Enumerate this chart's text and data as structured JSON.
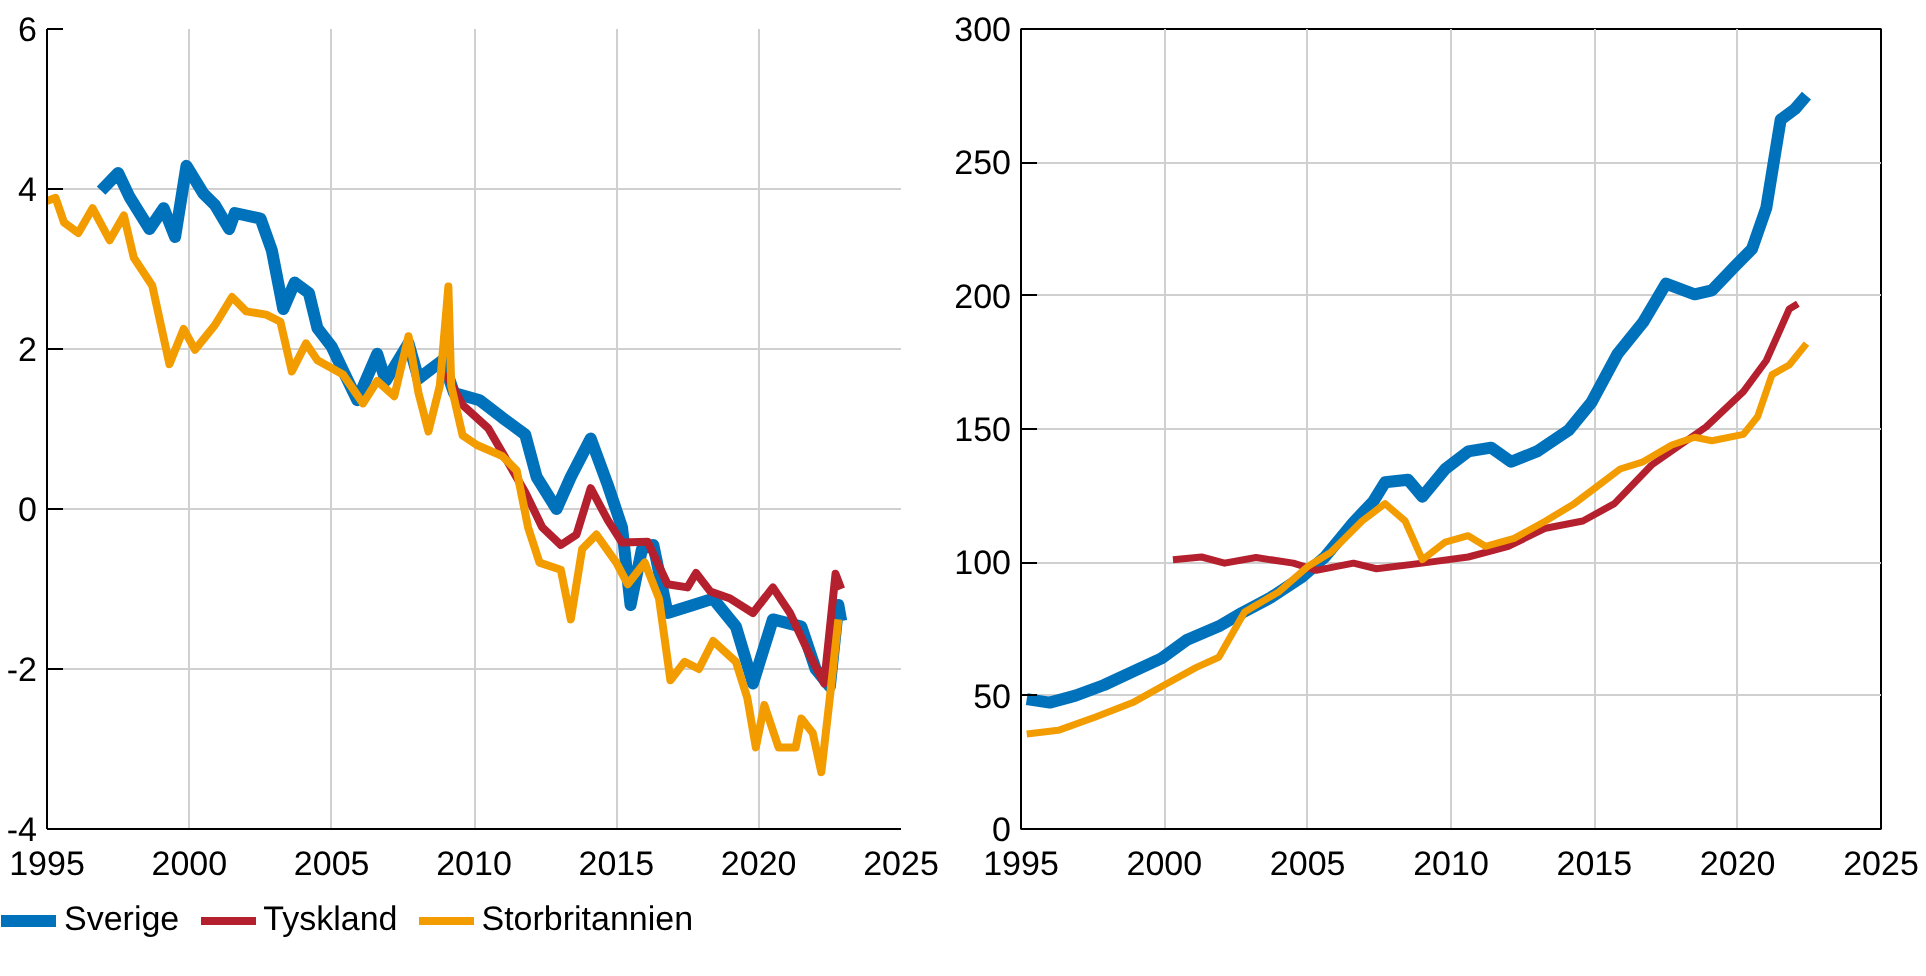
{
  "chart_data": [
    {
      "type": "line",
      "xlim": [
        1995,
        2025
      ],
      "xticks": [
        1995,
        2000,
        2005,
        2010,
        2015,
        2020,
        2025
      ],
      "ylim": [
        -4,
        6
      ],
      "yticks": [
        -4,
        -2,
        0,
        2,
        4,
        6
      ],
      "grid": true,
      "legend": "bottom",
      "series": [
        {
          "name": "Sverige",
          "color": "#0072bb",
          "x": [
            1996.9,
            1997.5,
            1997.9,
            1998.6,
            1999.1,
            1999.5,
            1999.9,
            2000.5,
            2000.9,
            2001.4,
            2001.6,
            2002.5,
            2002.9,
            2003.3,
            2003.7,
            2004.2,
            2004.5,
            2005.0,
            2005.4,
            2005.9,
            2006.6,
            2006.9,
            2007.7,
            2008.05,
            2008.9,
            2009.3,
            2010.2,
            2011.0,
            2011.8,
            2012.2,
            2012.9,
            2013.4,
            2014.1,
            2014.7,
            2015.2,
            2015.5,
            2015.9,
            2016.3,
            2016.8,
            2017.7,
            2018.4,
            2019.2,
            2019.8,
            2020.5,
            2021.5,
            2022.0,
            2022.5,
            2022.8,
            2022.9
          ],
          "values": [
            3.98,
            4.2,
            3.9,
            3.5,
            3.76,
            3.4,
            4.29,
            3.94,
            3.8,
            3.5,
            3.7,
            3.63,
            3.23,
            2.5,
            2.83,
            2.7,
            2.26,
            2.03,
            1.73,
            1.36,
            1.94,
            1.6,
            2.07,
            1.63,
            1.86,
            1.45,
            1.36,
            1.14,
            0.93,
            0.4,
            0.0,
            0.4,
            0.88,
            0.3,
            -0.23,
            -1.2,
            -0.5,
            -0.45,
            -1.3,
            -1.2,
            -1.12,
            -1.47,
            -2.18,
            -1.38,
            -1.47,
            -2.0,
            -2.22,
            -1.2,
            -1.4
          ]
        },
        {
          "name": "Tyskland",
          "color": "#b5202e",
          "x": [
            2009.0,
            2009.6,
            2010.5,
            2011.8,
            2012.4,
            2013.05,
            2013.6,
            2014.1,
            2014.7,
            2015.2,
            2016.1,
            2016.8,
            2017.5,
            2017.8,
            2018.3,
            2019.0,
            2019.8,
            2020.5,
            2021.1,
            2021.8,
            2022.3,
            2022.7,
            2022.9
          ],
          "values": [
            1.7,
            1.3,
            1.01,
            0.21,
            -0.23,
            -0.45,
            -0.32,
            0.26,
            -0.14,
            -0.42,
            -0.41,
            -0.94,
            -0.98,
            -0.8,
            -1.03,
            -1.12,
            -1.3,
            -0.98,
            -1.3,
            -1.83,
            -2.18,
            -0.81,
            -1.0
          ]
        },
        {
          "name": "Storbritannien",
          "color": "#f39c00",
          "x": [
            1995.0,
            1995.3,
            1995.6,
            1996.1,
            1996.6,
            1997.2,
            1997.7,
            1998.05,
            1998.7,
            1999.3,
            1999.8,
            2000.2,
            2000.9,
            2001.5,
            2002.0,
            2002.7,
            2003.2,
            2003.6,
            2004.1,
            2004.5,
            2005.4,
            2006.1,
            2006.6,
            2007.2,
            2007.7,
            2008.05,
            2008.4,
            2008.8,
            2009.1,
            2009.2,
            2009.6,
            2010.1,
            2011.0,
            2011.5,
            2011.9,
            2012.3,
            2013.05,
            2013.4,
            2013.8,
            2014.3,
            2015.0,
            2015.4,
            2016.0,
            2016.5,
            2016.9,
            2017.4,
            2017.9,
            2018.4,
            2019.2,
            2019.6,
            2019.9,
            2020.2,
            2020.7,
            2021.3,
            2021.5,
            2021.9,
            2022.2,
            2022.5,
            2022.8
          ],
          "values": [
            3.85,
            3.89,
            3.58,
            3.45,
            3.76,
            3.36,
            3.67,
            3.14,
            2.79,
            1.81,
            2.25,
            1.99,
            2.3,
            2.65,
            2.47,
            2.43,
            2.34,
            1.72,
            2.07,
            1.86,
            1.68,
            1.32,
            1.6,
            1.41,
            2.16,
            1.45,
            0.97,
            1.54,
            2.78,
            1.54,
            0.92,
            0.8,
            0.66,
            0.48,
            -0.23,
            -0.67,
            -0.76,
            -1.38,
            -0.5,
            -0.32,
            -0.67,
            -0.94,
            -0.67,
            -1.12,
            -2.14,
            -1.91,
            -2.0,
            -1.65,
            -1.91,
            -2.36,
            -2.98,
            -2.45,
            -2.98,
            -2.98,
            -2.62,
            -2.8,
            -3.29,
            -2.36,
            -1.38
          ]
        }
      ]
    },
    {
      "type": "line",
      "xlim": [
        1995,
        2025
      ],
      "xticks": [
        1995,
        2000,
        2005,
        2010,
        2015,
        2020,
        2025
      ],
      "ylim": [
        0,
        300
      ],
      "yticks": [
        0,
        50,
        100,
        150,
        200,
        250,
        300
      ],
      "grid": true,
      "series": [
        {
          "color": "#0072bb",
          "x": [
            1995.2,
            1996.0,
            1996.9,
            1997.9,
            1998.9,
            1999.9,
            2000.8,
            2001.9,
            2002.7,
            2003.7,
            2004.8,
            2005.6,
            2006.6,
            2007.3,
            2007.7,
            2008.5,
            2009.0,
            2009.8,
            2010.6,
            2011.4,
            2012.1,
            2013.0,
            2014.1,
            2014.9,
            2015.8,
            2016.7,
            2017.5,
            2018.5,
            2019.1,
            2019.9,
            2020.5,
            2021.0,
            2021.5,
            2022.0,
            2022.4
          ],
          "values": [
            48.7,
            47.4,
            50,
            54,
            59,
            64,
            71,
            76,
            81,
            86.7,
            94.5,
            102,
            115,
            123,
            130,
            131,
            124.6,
            135,
            141.6,
            143,
            137.7,
            141.6,
            149.5,
            160,
            178,
            190,
            204.5,
            200.5,
            202,
            211,
            217.5,
            233,
            266,
            270,
            275
          ]
        },
        {
          "color": "#b5202e",
          "x": [
            2000.3,
            2001.3,
            2002.1,
            2003.2,
            2004.5,
            2005.3,
            2006.6,
            2007.4,
            2009.0,
            2010.6,
            2012.0,
            2013.3,
            2014.6,
            2015.7,
            2017.0,
            2018.9,
            2020.2,
            2021.0,
            2021.8,
            2022.1
          ],
          "values": [
            101,
            102,
            99.7,
            101.8,
            99.7,
            97,
            99.7,
            97.6,
            99.7,
            102,
            106,
            112.8,
            115.5,
            122,
            136.5,
            150.8,
            164,
            175.7,
            195,
            197
          ]
        },
        {
          "color": "#f39c00",
          "x": [
            1995.2,
            1996.3,
            1997.6,
            1998.9,
            2000.0,
            2001.1,
            2001.9,
            2002.8,
            2004.0,
            2005.0,
            2005.8,
            2006.9,
            2007.7,
            2008.4,
            2009.0,
            2009.8,
            2010.6,
            2011.2,
            2012.2,
            2013.3,
            2014.3,
            2015.1,
            2015.9,
            2016.7,
            2017.7,
            2018.5,
            2019.1,
            2020.2,
            2020.7,
            2021.2,
            2021.8,
            2022.4
          ],
          "values": [
            35.6,
            37,
            42,
            47.4,
            54,
            60.5,
            64.4,
            81.4,
            89,
            98.4,
            103.7,
            115.5,
            122,
            115.5,
            101,
            107.6,
            110,
            106,
            109,
            115.5,
            122,
            128.5,
            135,
            137.7,
            144,
            146.9,
            145.6,
            148,
            154.7,
            170.4,
            174,
            182
          ]
        }
      ]
    }
  ]
}
